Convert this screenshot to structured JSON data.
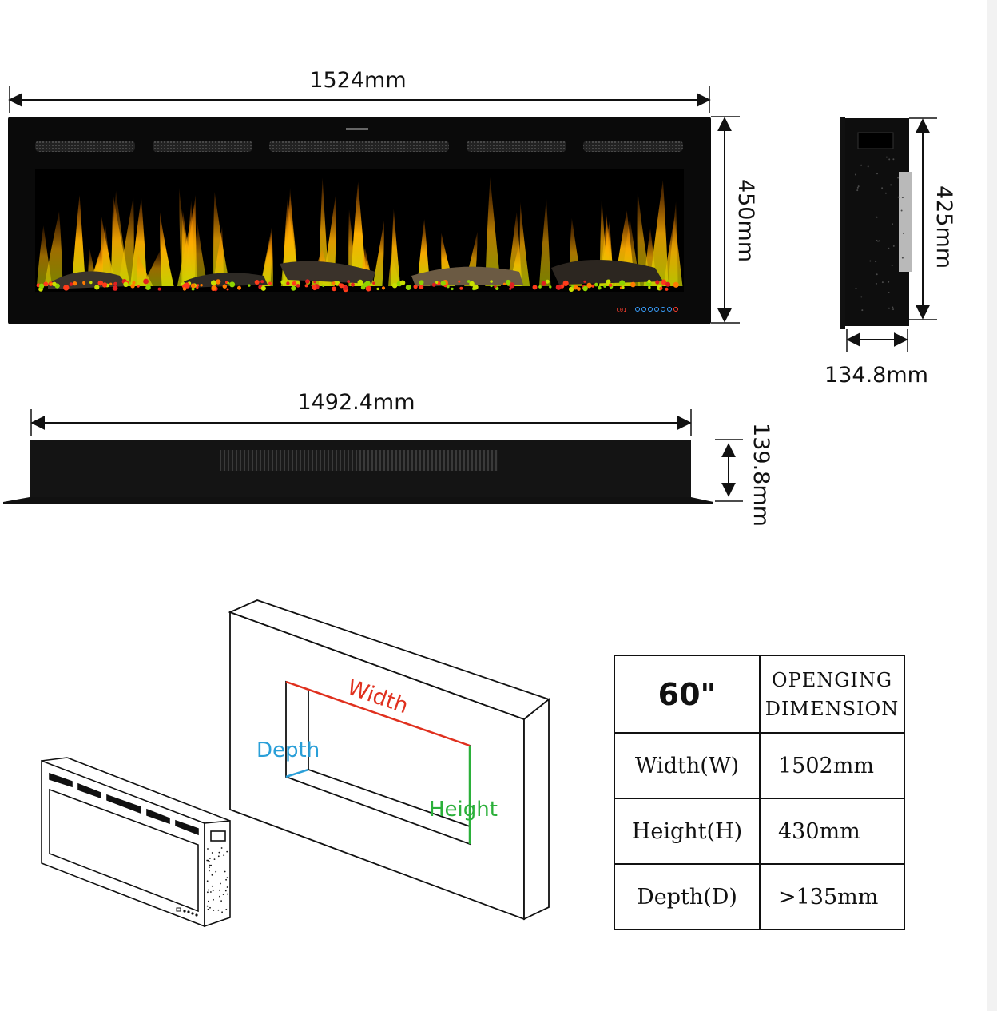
{
  "front_view": {
    "width_label": "1524mm",
    "height_label": "450mm",
    "panel_display": "C01"
  },
  "side_view": {
    "height_label": "425mm",
    "depth_label": "134.8mm"
  },
  "top_view": {
    "width_label": "1492.4mm",
    "depth_label": "139.8mm"
  },
  "installation": {
    "width_label": "Width",
    "depth_label": "Depth",
    "height_label": "Height"
  },
  "colors": {
    "width_line": "#e0301e",
    "depth_line": "#2a9fd8",
    "height_line": "#2bb03a"
  },
  "spec_table": {
    "size": "60\"",
    "heading_line1": "OPENGING",
    "heading_line2": "DIMENSION",
    "rows": [
      {
        "label": "Width(W)",
        "value": "1502mm"
      },
      {
        "label": "Height(H)",
        "value": "430mm"
      },
      {
        "label": "Depth(D)",
        "value": ">135mm"
      }
    ]
  }
}
